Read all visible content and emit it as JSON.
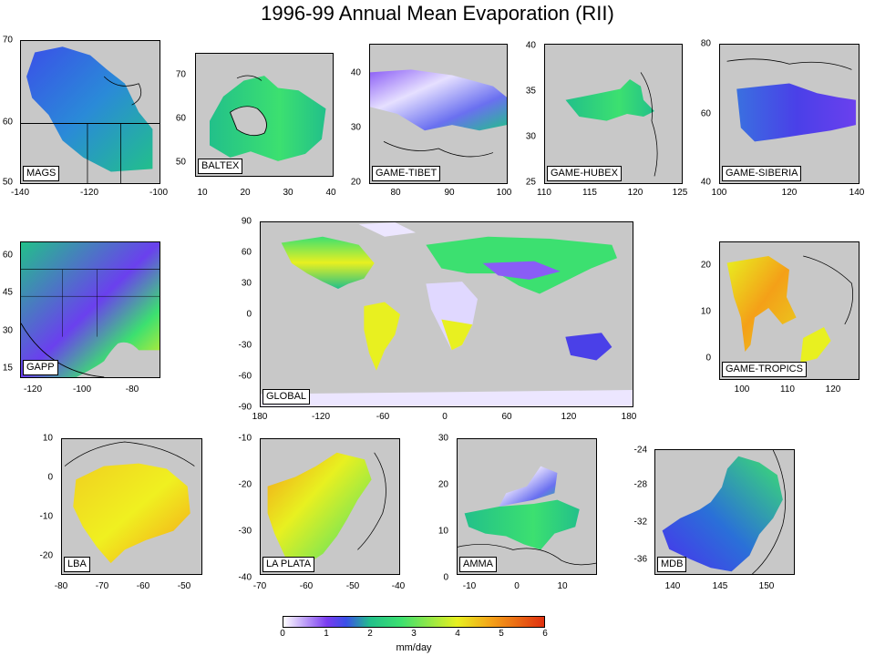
{
  "title": "1996-99 Annual Mean Evaporation (RII)",
  "colorbar": {
    "ticks": [
      "0",
      "1",
      "2",
      "3",
      "4",
      "5",
      "6"
    ],
    "unit": "mm/day",
    "colors": [
      "#ffffff",
      "#7a3cf0",
      "#3a50e8",
      "#22c08a",
      "#3ce070",
      "#e8f020",
      "#f4a018",
      "#e03010"
    ]
  },
  "map_colors": {
    "ocean": "#c8c8c8",
    "coast": "#000000"
  },
  "panels": [
    {
      "id": "mags",
      "label": "MAGS",
      "xticks": [
        "-140",
        "-120",
        "-100"
      ],
      "yticks": [
        "70",
        "60",
        "50"
      ],
      "field": "blue-green"
    },
    {
      "id": "baltex",
      "label": "BALTEX",
      "xticks": [
        "10",
        "20",
        "30",
        "40"
      ],
      "yticks": [
        "70",
        "60",
        "50"
      ],
      "field": "green"
    },
    {
      "id": "game-tibet",
      "label": "GAME-TIBET",
      "xticks": [
        "80",
        "90",
        "100"
      ],
      "yticks": [
        "40",
        "30",
        "20"
      ],
      "field": "violet-green"
    },
    {
      "id": "game-hubex",
      "label": "GAME-HUBEX",
      "xticks": [
        "110",
        "115",
        "120",
        "125"
      ],
      "yticks": [
        "40",
        "35",
        "30",
        "25"
      ],
      "field": "green"
    },
    {
      "id": "game-siberia",
      "label": "GAME-SIBERIA",
      "xticks": [
        "100",
        "120",
        "140"
      ],
      "yticks": [
        "80",
        "60",
        "40"
      ],
      "field": "blue"
    },
    {
      "id": "gapp",
      "label": "GAPP",
      "xticks": [
        "-120",
        "-100",
        "-80"
      ],
      "yticks": [
        "60",
        "45",
        "30",
        "15"
      ],
      "field": "green-violet"
    },
    {
      "id": "global",
      "label": "GLOBAL",
      "xticks": [
        "180",
        "-120",
        "-60",
        "0",
        "60",
        "120",
        "180"
      ],
      "yticks": [
        "90",
        "60",
        "30",
        "0",
        "-30",
        "-60",
        "-90"
      ],
      "field": "global"
    },
    {
      "id": "game-tropics",
      "label": "GAME-TROPICS",
      "xticks": [
        "100",
        "110",
        "120"
      ],
      "yticks": [
        "20",
        "10",
        "0"
      ],
      "field": "orange"
    },
    {
      "id": "lba",
      "label": "LBA",
      "xticks": [
        "-80",
        "-70",
        "-60",
        "-50"
      ],
      "yticks": [
        "10",
        "0",
        "-10",
        "-20"
      ],
      "field": "yellow"
    },
    {
      "id": "la-plata",
      "label": "LA PLATA",
      "xticks": [
        "-70",
        "-60",
        "-50",
        "-40"
      ],
      "yticks": [
        "-10",
        "-20",
        "-30",
        "-40"
      ],
      "field": "yellow-green"
    },
    {
      "id": "amma",
      "label": "AMMA",
      "xticks": [
        "-10",
        "0",
        "10"
      ],
      "yticks": [
        "30",
        "20",
        "10",
        "0"
      ],
      "field": "violet-green"
    },
    {
      "id": "mdb",
      "label": "MDB",
      "xticks": [
        "140",
        "145",
        "150"
      ],
      "yticks": [
        "-24",
        "-28",
        "-32",
        "-36"
      ],
      "field": "blue-green"
    }
  ]
}
